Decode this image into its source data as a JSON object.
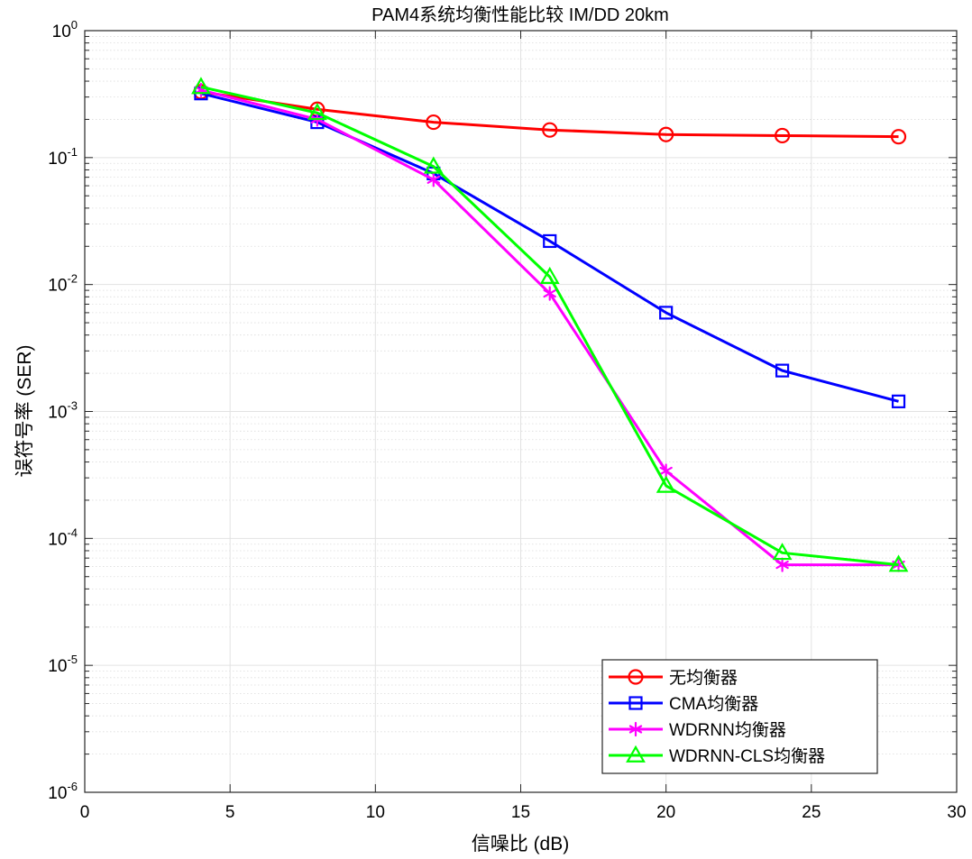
{
  "chart_data": {
    "type": "line",
    "title": "PAM4系统均衡性能比较 IM/DD 20km",
    "xlabel": "信噪比 (dB)",
    "ylabel": "误符号率 (SER)",
    "xlim": [
      0,
      30
    ],
    "ylim": [
      1e-06,
      1
    ],
    "yscale": "log",
    "grid": true,
    "minor_grid": true,
    "legend_position": "bottom-right",
    "x_ticks": [
      {
        "value": 0,
        "label": "0"
      },
      {
        "value": 5,
        "label": "5"
      },
      {
        "value": 10,
        "label": "10"
      },
      {
        "value": 15,
        "label": "15"
      },
      {
        "value": 20,
        "label": "20"
      },
      {
        "value": 25,
        "label": "25"
      },
      {
        "value": 30,
        "label": "30"
      }
    ],
    "y_ticks": [
      {
        "value": 1,
        "base": "10",
        "exp": "0"
      },
      {
        "value": 0.1,
        "base": "10",
        "exp": "-1"
      },
      {
        "value": 0.01,
        "base": "10",
        "exp": "-2"
      },
      {
        "value": 0.001,
        "base": "10",
        "exp": "-3"
      },
      {
        "value": 0.0001,
        "base": "10",
        "exp": "-4"
      },
      {
        "value": 1e-05,
        "base": "10",
        "exp": "-5"
      },
      {
        "value": 1e-06,
        "base": "10",
        "exp": "-6"
      }
    ],
    "x": [
      4,
      8,
      12,
      16,
      20,
      24,
      28
    ],
    "series": [
      {
        "name": "无均衡器",
        "color": "#ff0000",
        "marker": "circle",
        "values": [
          0.33,
          0.24,
          0.19,
          0.165,
          0.152,
          0.149,
          0.146
        ]
      },
      {
        "name": "CMA均衡器",
        "color": "#0000ff",
        "marker": "square",
        "values": [
          0.32,
          0.19,
          0.075,
          0.022,
          0.006,
          0.0021,
          0.0012
        ]
      },
      {
        "name": "WDRNN均衡器",
        "color": "#ff00ff",
        "marker": "asterisk",
        "values": [
          0.34,
          0.2,
          0.067,
          0.0085,
          0.00034,
          6.2e-05,
          6.2e-05
        ]
      },
      {
        "name": "WDRNN-CLS均衡器",
        "color": "#00ff00",
        "marker": "triangle",
        "values": [
          0.36,
          0.225,
          0.085,
          0.0115,
          0.00026,
          7.7e-05,
          6.2e-05
        ]
      }
    ]
  }
}
